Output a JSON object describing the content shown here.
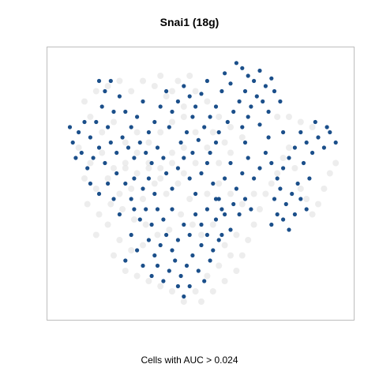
{
  "chart_data": {
    "type": "scatter",
    "title": "Snai1 (18g)",
    "caption": "Cells with AUC > 0.024",
    "xlabel": "",
    "ylabel": "",
    "xlim": [
      0,
      100
    ],
    "ylim": [
      0,
      100
    ],
    "axes_visible": false,
    "grid": false,
    "legend": "none",
    "series": [
      {
        "colors": {
          "high": "#1b4f8a",
          "low": "#e6e6e6"
        },
        "points": [
          [
            62,
            97
          ],
          [
            64,
            95
          ],
          [
            58,
            93
          ],
          [
            66,
            92
          ],
          [
            70,
            94
          ],
          [
            68,
            90
          ],
          [
            72,
            88
          ],
          [
            65,
            86
          ],
          [
            60,
            89
          ],
          [
            74,
            91
          ],
          [
            69,
            84
          ],
          [
            63,
            82
          ],
          [
            67,
            80
          ],
          [
            71,
            82
          ],
          [
            75,
            86
          ],
          [
            57,
            86
          ],
          [
            55,
            80
          ],
          [
            61,
            78
          ],
          [
            66,
            76
          ],
          [
            73,
            78
          ],
          [
            77,
            82
          ],
          [
            59,
            74
          ],
          [
            64,
            72
          ],
          [
            70,
            73
          ],
          [
            56,
            70
          ],
          [
            52,
            90
          ],
          [
            50,
            85
          ],
          [
            48,
            80
          ],
          [
            53,
            76
          ],
          [
            46,
            84
          ],
          [
            44,
            88
          ],
          [
            42,
            82
          ],
          [
            47,
            76
          ],
          [
            51,
            72
          ],
          [
            45,
            70
          ],
          [
            40,
            78
          ],
          [
            39,
            72
          ],
          [
            43,
            66
          ],
          [
            49,
            67
          ],
          [
            55,
            66
          ],
          [
            36,
            80
          ],
          [
            34,
            74
          ],
          [
            30,
            82
          ],
          [
            28,
            76
          ],
          [
            32,
            70
          ],
          [
            26,
            72
          ],
          [
            24,
            78
          ],
          [
            22,
            84
          ],
          [
            20,
            78
          ],
          [
            18,
            72
          ],
          [
            16,
            80
          ],
          [
            14,
            74
          ],
          [
            12,
            68
          ],
          [
            10,
            74
          ],
          [
            8,
            70
          ],
          [
            6,
            66
          ],
          [
            5,
            72
          ],
          [
            9,
            62
          ],
          [
            13,
            60
          ],
          [
            11,
            56
          ],
          [
            15,
            64
          ],
          [
            19,
            66
          ],
          [
            17,
            58
          ],
          [
            21,
            62
          ],
          [
            23,
            68
          ],
          [
            25,
            64
          ],
          [
            27,
            60
          ],
          [
            29,
            66
          ],
          [
            31,
            62
          ],
          [
            33,
            58
          ],
          [
            35,
            64
          ],
          [
            37,
            60
          ],
          [
            21,
            54
          ],
          [
            24,
            50
          ],
          [
            27,
            52
          ],
          [
            30,
            48
          ],
          [
            18,
            50
          ],
          [
            15,
            46
          ],
          [
            12,
            50
          ],
          [
            20,
            44
          ],
          [
            26,
            44
          ],
          [
            32,
            52
          ],
          [
            34,
            46
          ],
          [
            38,
            54
          ],
          [
            40,
            48
          ],
          [
            42,
            56
          ],
          [
            44,
            60
          ],
          [
            46,
            52
          ],
          [
            48,
            46
          ],
          [
            50,
            54
          ],
          [
            52,
            58
          ],
          [
            54,
            50
          ],
          [
            56,
            44
          ],
          [
            58,
            52
          ],
          [
            60,
            58
          ],
          [
            62,
            48
          ],
          [
            64,
            54
          ],
          [
            66,
            60
          ],
          [
            68,
            52
          ],
          [
            70,
            56
          ],
          [
            72,
            62
          ],
          [
            74,
            58
          ],
          [
            76,
            52
          ],
          [
            78,
            56
          ],
          [
            80,
            60
          ],
          [
            82,
            64
          ],
          [
            84,
            70
          ],
          [
            86,
            66
          ],
          [
            88,
            62
          ],
          [
            90,
            68
          ],
          [
            92,
            64
          ],
          [
            94,
            70
          ],
          [
            96,
            66
          ],
          [
            93,
            72
          ],
          [
            89,
            74
          ],
          [
            85,
            58
          ],
          [
            87,
            52
          ],
          [
            83,
            50
          ],
          [
            81,
            46
          ],
          [
            79,
            42
          ],
          [
            77,
            48
          ],
          [
            75,
            44
          ],
          [
            84,
            44
          ],
          [
            86,
            40
          ],
          [
            82,
            38
          ],
          [
            78,
            36
          ],
          [
            80,
            32
          ],
          [
            76,
            38
          ],
          [
            74,
            34
          ],
          [
            57,
            40
          ],
          [
            55,
            36
          ],
          [
            52,
            40
          ],
          [
            50,
            34
          ],
          [
            48,
            38
          ],
          [
            46,
            30
          ],
          [
            44,
            34
          ],
          [
            42,
            28
          ],
          [
            40,
            24
          ],
          [
            38,
            30
          ],
          [
            36,
            26
          ],
          [
            34,
            22
          ],
          [
            32,
            28
          ],
          [
            30,
            18
          ],
          [
            28,
            24
          ],
          [
            26,
            30
          ],
          [
            24,
            20
          ],
          [
            47,
            22
          ],
          [
            45,
            18
          ],
          [
            43,
            14
          ],
          [
            41,
            20
          ],
          [
            39,
            16
          ],
          [
            37,
            12
          ],
          [
            35,
            18
          ],
          [
            33,
            14
          ],
          [
            50,
            26
          ],
          [
            52,
            30
          ],
          [
            54,
            24
          ],
          [
            56,
            28
          ],
          [
            53,
            20
          ],
          [
            49,
            16
          ],
          [
            51,
            12
          ],
          [
            46,
            10
          ],
          [
            44,
            6
          ],
          [
            42,
            10
          ],
          [
            55,
            44
          ],
          [
            58,
            38
          ],
          [
            60,
            32
          ],
          [
            57,
            30
          ],
          [
            61,
            42
          ],
          [
            63,
            38
          ],
          [
            65,
            44
          ],
          [
            67,
            40
          ],
          [
            40,
            40
          ],
          [
            37,
            36
          ],
          [
            35,
            40
          ],
          [
            33,
            34
          ],
          [
            31,
            40
          ],
          [
            29,
            36
          ],
          [
            27,
            40
          ],
          [
            22,
            38
          ],
          [
            65,
            66
          ],
          [
            78,
            70
          ],
          [
            73,
            68
          ],
          [
            17,
            86
          ],
          [
            15,
            90
          ],
          [
            19,
            90
          ],
          [
            38,
            86
          ],
          [
            53,
            62
          ],
          [
            47,
            62
          ],
          [
            7,
            60
          ]
        ]
      },
      {
        "name": "",
        "points": [
          [
            10,
            82
          ],
          [
            14,
            86
          ],
          [
            18,
            88
          ],
          [
            22,
            90
          ],
          [
            26,
            86
          ],
          [
            30,
            90
          ],
          [
            34,
            88
          ],
          [
            38,
            84
          ],
          [
            42,
            90
          ],
          [
            46,
            92
          ],
          [
            12,
            76
          ],
          [
            16,
            70
          ],
          [
            20,
            74
          ],
          [
            24,
            66
          ],
          [
            28,
            70
          ],
          [
            32,
            66
          ],
          [
            36,
            70
          ],
          [
            40,
            74
          ],
          [
            44,
            76
          ],
          [
            48,
            70
          ],
          [
            8,
            64
          ],
          [
            12,
            58
          ],
          [
            16,
            62
          ],
          [
            20,
            56
          ],
          [
            24,
            58
          ],
          [
            28,
            54
          ],
          [
            32,
            58
          ],
          [
            36,
            56
          ],
          [
            40,
            62
          ],
          [
            44,
            64
          ],
          [
            10,
            52
          ],
          [
            14,
            48
          ],
          [
            18,
            52
          ],
          [
            22,
            46
          ],
          [
            26,
            48
          ],
          [
            30,
            44
          ],
          [
            34,
            50
          ],
          [
            38,
            46
          ],
          [
            42,
            50
          ],
          [
            46,
            44
          ],
          [
            11,
            42
          ],
          [
            15,
            38
          ],
          [
            19,
            42
          ],
          [
            23,
            40
          ],
          [
            27,
            36
          ],
          [
            31,
            34
          ],
          [
            35,
            30
          ],
          [
            39,
            32
          ],
          [
            43,
            38
          ],
          [
            47,
            34
          ],
          [
            50,
            30
          ],
          [
            54,
            34
          ],
          [
            58,
            26
          ],
          [
            62,
            30
          ],
          [
            60,
            22
          ],
          [
            56,
            18
          ],
          [
            52,
            14
          ],
          [
            48,
            8
          ],
          [
            44,
            4
          ],
          [
            40,
            8
          ],
          [
            36,
            10
          ],
          [
            32,
            12
          ],
          [
            28,
            14
          ],
          [
            24,
            16
          ],
          [
            20,
            22
          ],
          [
            50,
            4
          ],
          [
            54,
            8
          ],
          [
            58,
            12
          ],
          [
            62,
            16
          ],
          [
            64,
            22
          ],
          [
            66,
            28
          ],
          [
            68,
            34
          ],
          [
            70,
            40
          ],
          [
            72,
            46
          ],
          [
            74,
            50
          ],
          [
            76,
            54
          ],
          [
            78,
            60
          ],
          [
            80,
            64
          ],
          [
            82,
            56
          ],
          [
            84,
            48
          ],
          [
            86,
            44
          ],
          [
            88,
            38
          ],
          [
            90,
            42
          ],
          [
            92,
            48
          ],
          [
            94,
            54
          ],
          [
            96,
            58
          ],
          [
            88,
            72
          ],
          [
            84,
            74
          ],
          [
            80,
            76
          ],
          [
            76,
            76
          ],
          [
            60,
            62
          ],
          [
            56,
            58
          ],
          [
            52,
            64
          ],
          [
            48,
            58
          ],
          [
            44,
            54
          ],
          [
            40,
            58
          ],
          [
            36,
            52
          ],
          [
            32,
            56
          ],
          [
            28,
            62
          ],
          [
            24,
            56
          ],
          [
            64,
            68
          ],
          [
            60,
            72
          ],
          [
            56,
            76
          ],
          [
            52,
            82
          ],
          [
            48,
            86
          ],
          [
            44,
            80
          ],
          [
            40,
            86
          ],
          [
            36,
            92
          ],
          [
            58,
            66
          ],
          [
            54,
            70
          ],
          [
            30,
            26
          ],
          [
            26,
            24
          ],
          [
            22,
            28
          ],
          [
            18,
            34
          ],
          [
            14,
            30
          ],
          [
            52,
            46
          ],
          [
            56,
            50
          ],
          [
            60,
            46
          ],
          [
            64,
            42
          ],
          [
            68,
            46
          ]
        ]
      }
    ]
  }
}
